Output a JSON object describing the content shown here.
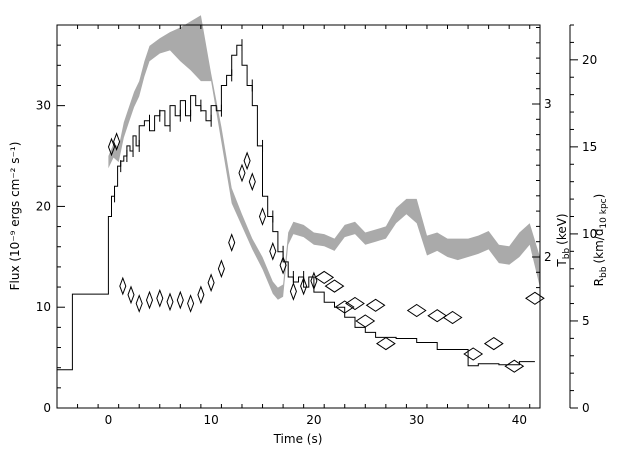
{
  "chart_data": {
    "type": "line",
    "xlabel": "Time (s)",
    "ylabel": "Flux (10⁻⁹ ergs cm⁻² s⁻¹)",
    "y2label": "T",
    "y2label_sub": "bb",
    "y2label_unit": "(keV)",
    "y3label": "R",
    "y3label_sub": "bb",
    "y3label_unit": "(km/d",
    "y3label_unit_sub": "10 kpc",
    "y3label_unit_end": ")",
    "xlim": [
      -5,
      42
    ],
    "ylim": [
      0,
      38
    ],
    "xticks": [
      "0",
      "10",
      "20",
      "30",
      "40"
    ],
    "yticks": [
      "0",
      "10",
      "20",
      "30"
    ],
    "y2ticks": [
      "2",
      "3"
    ],
    "y3ticks": [
      "0",
      "5",
      "10",
      "15",
      "20"
    ],
    "y3lim": [
      0,
      22
    ],
    "colors": {
      "flux": "#000000",
      "temperature_band": "#aaaaaa",
      "radius": "#000000"
    },
    "series": [
      {
        "style": "step",
        "x": [
          -5,
          -3.5,
          -3.5,
          0,
          0,
          0.3,
          0.6,
          0.9,
          1.2,
          1.5,
          1.8,
          2.1,
          2.4,
          2.7,
          3,
          3.5,
          4,
          4.5,
          5,
          5.5,
          6,
          6.5,
          7,
          7.5,
          8,
          8.5,
          9,
          9.5,
          10,
          10.5,
          11,
          11.5,
          12,
          12.5,
          13,
          13.5,
          14,
          14.5,
          15,
          15.5,
          16,
          16.5,
          17,
          17.5,
          18,
          18.5,
          19,
          19.5,
          20,
          21,
          22,
          23,
          24,
          25,
          26,
          27,
          28,
          30,
          32,
          35,
          36,
          38,
          40,
          41.5
        ],
        "values": [
          3.8,
          3.8,
          11.3,
          11.3,
          15.5,
          19,
          21,
          22,
          24,
          24.5,
          25,
          26,
          25.5,
          27,
          26,
          28,
          28.5,
          27.5,
          29,
          29.5,
          28,
          30,
          29,
          30.5,
          29,
          31,
          30,
          29.5,
          28.5,
          30,
          29.5,
          32,
          33,
          35,
          36,
          34,
          32,
          30,
          26,
          21,
          19,
          17.5,
          15.5,
          14.5,
          13,
          12.5,
          13,
          12,
          13,
          11.5,
          10.5,
          10,
          9,
          8,
          7.5,
          7,
          7,
          6.9,
          6.5,
          5.8,
          4.2,
          4.4,
          4.3,
          4.6
        ]
      },
      {
        "style": "band",
        "x": [
          0,
          0.5,
          1,
          1.5,
          2,
          2.5,
          3,
          3.5,
          4,
          5,
          6,
          7,
          8,
          9,
          10,
          11,
          12,
          13,
          14,
          15,
          16,
          16.5,
          17,
          17.5,
          18,
          19,
          20,
          21,
          22,
          23,
          24,
          25,
          26,
          27,
          28,
          29,
          30,
          31,
          32,
          33,
          34,
          35,
          36,
          37,
          38,
          39,
          40,
          41,
          42
        ],
        "lower": [
          2.58,
          2.65,
          2.62,
          2.78,
          2.88,
          2.98,
          3.05,
          3.18,
          3.28,
          3.33,
          3.35,
          3.28,
          3.22,
          3.15,
          3.15,
          2.75,
          2.35,
          2.2,
          2.05,
          1.92,
          1.76,
          1.72,
          1.74,
          2.08,
          2.15,
          2.13,
          2.08,
          2.07,
          2.04,
          2.13,
          2.15,
          2.08,
          2.1,
          2.12,
          2.22,
          2.28,
          2.22,
          2.01,
          2.04,
          2.0,
          1.98,
          2.0,
          2.02,
          2.05,
          1.96,
          1.95,
          2.0,
          2.08,
          1.8
        ],
        "upper": [
          2.66,
          2.74,
          2.72,
          2.88,
          2.98,
          3.08,
          3.15,
          3.28,
          3.38,
          3.43,
          3.47,
          3.5,
          3.54,
          3.58,
          3.2,
          2.85,
          2.45,
          2.28,
          2.12,
          2.0,
          1.84,
          1.8,
          1.82,
          2.16,
          2.23,
          2.21,
          2.16,
          2.15,
          2.12,
          2.21,
          2.23,
          2.16,
          2.18,
          2.2,
          2.32,
          2.38,
          2.38,
          2.14,
          2.16,
          2.12,
          2.12,
          2.12,
          2.14,
          2.17,
          2.08,
          2.07,
          2.16,
          2.22,
          2.0
        ]
      },
      {
        "style": "diamonds",
        "x": [
          0.3,
          0.8,
          1.4,
          2.2,
          3,
          4,
          5,
          6,
          7,
          8,
          9,
          10,
          11,
          12,
          13,
          13.5,
          14,
          15,
          16,
          17,
          18,
          19,
          20,
          21,
          22,
          23,
          24,
          25,
          26,
          27,
          30,
          32,
          33.5,
          35.5,
          37.5,
          39.5,
          41.5
        ],
        "values": [
          15,
          15.3,
          7,
          6.5,
          6,
          6.2,
          6.3,
          6.1,
          6.2,
          6,
          6.5,
          7.2,
          8,
          9.5,
          13.5,
          14.2,
          13,
          11,
          9,
          8.2,
          6.7,
          7,
          7.3,
          7.5,
          7,
          5.8,
          6,
          5,
          5.9,
          3.7,
          5.6,
          5.3,
          5.2,
          3.1,
          3.7,
          2.4,
          6.3
        ]
      }
    ]
  }
}
